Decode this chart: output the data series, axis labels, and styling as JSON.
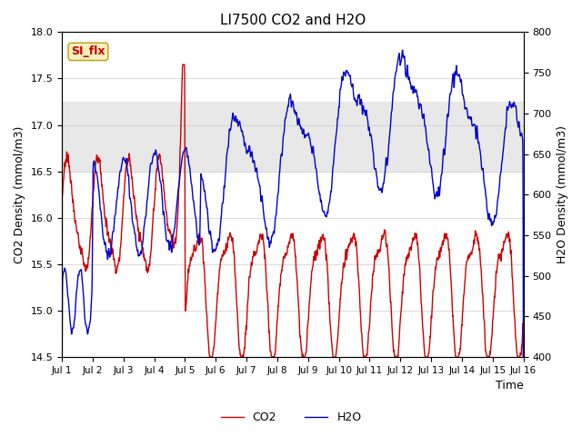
{
  "title": "LI7500 CO2 and H2O",
  "xlabel": "Time",
  "ylabel_left": "CO2 Density (mmol/m3)",
  "ylabel_right": "H2O Density (mmol/m3)",
  "ylim_left": [
    14.5,
    18.0
  ],
  "ylim_right": [
    400,
    800
  ],
  "co2_color": "#cc0000",
  "h2o_color": "#0000cc",
  "line_width": 1.0,
  "shading_color": "#e8e8e8",
  "shading_ylim": [
    16.5,
    17.25
  ],
  "annotation_text": "SI_flx",
  "annotation_color": "#cc0000",
  "annotation_bg": "#f5f0c0",
  "annotation_border": "#b8a000",
  "legend_co2": "CO2",
  "legend_h2o": "H2O",
  "xtick_labels": [
    "Jul 1",
    "Jul 2",
    "Jul 3",
    "Jul 4",
    "Jul 5",
    "Jul 6",
    "Jul 7",
    "Jul 8",
    "Jul 9",
    "Jul 10",
    "Jul 11",
    "Jul 12",
    "Jul 13",
    "Jul 14",
    "Jul 15",
    "Jul 16"
  ],
  "n_points": 3600,
  "background_color": "#ffffff",
  "grid_color": "#cccccc"
}
